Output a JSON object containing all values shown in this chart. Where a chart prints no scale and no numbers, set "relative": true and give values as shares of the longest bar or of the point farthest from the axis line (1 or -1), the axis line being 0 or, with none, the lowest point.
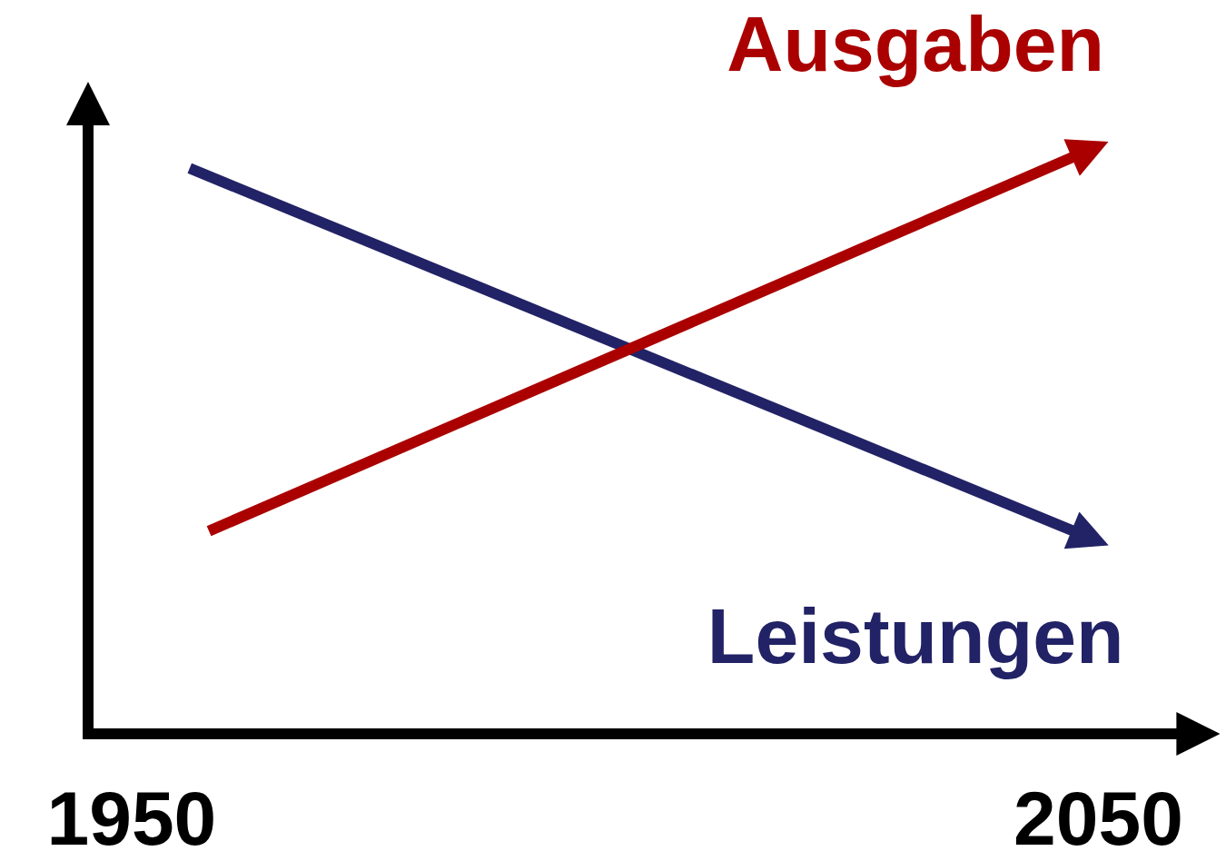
{
  "chart_data": {
    "type": "line",
    "relative": true,
    "xlim": [
      1945.5,
      2058.5
    ],
    "xticks": [
      1950,
      2050
    ],
    "series": [
      {
        "name": "Leistungen",
        "color": "#222266",
        "x": [
          1956,
          2048
        ],
        "values": [
          0.976,
          0.346
        ]
      },
      {
        "name": "Ausgaben",
        "color": "#aa0000",
        "x": [
          1958,
          2048
        ],
        "values": [
          0.35,
          1
        ]
      }
    ]
  }
}
